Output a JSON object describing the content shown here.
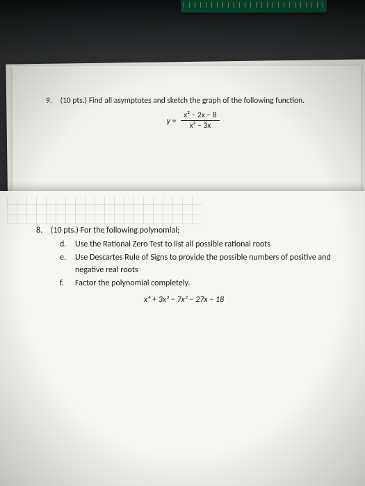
{
  "q9": {
    "number": "9.",
    "points": "(10 pts.)",
    "prompt": "Find all asymptotes and sketch the graph of the following function.",
    "eq_lhs": "y =",
    "eq_num": "x² − 2x − 8",
    "eq_den": "x² − 3x"
  },
  "q8": {
    "number": "8.",
    "points": "(10 pts.)",
    "lead": "For the following polynomial;",
    "items": [
      {
        "letter": "d.",
        "text": "Use the Rational Zero Test to list all possible rational roots"
      },
      {
        "letter": "e.",
        "text": "Use Descartes Rule of Signs to provide the possible numbers of positive and negative real roots"
      },
      {
        "letter": "f.",
        "text": "Factor the polynomial completely."
      }
    ],
    "polynomial": "x⁴ + 3x³ − 7x² − 27x − 18"
  },
  "style": {
    "page_bg": "#f6f5f1",
    "page_bg_alt": "#f3f1ec",
    "desk_bg": "#2a2c2e",
    "text_color": "#1a1a1a",
    "body_fontsize_pt": 11.5
  }
}
